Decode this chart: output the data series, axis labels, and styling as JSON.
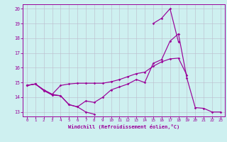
{
  "xlabel": "Windchill (Refroidissement éolien,°C)",
  "bg_color": "#cef0f0",
  "line_color": "#990099",
  "grid_color": "#bbbbcc",
  "xlim": [
    -0.5,
    23.5
  ],
  "ylim": [
    12.7,
    20.3
  ],
  "xticks": [
    0,
    1,
    2,
    3,
    4,
    5,
    6,
    7,
    8,
    9,
    10,
    11,
    12,
    13,
    14,
    15,
    16,
    17,
    18,
    19,
    20,
    21,
    22,
    23
  ],
  "yticks": [
    13,
    14,
    15,
    16,
    17,
    18,
    19,
    20
  ],
  "lines": [
    {
      "x": [
        0,
        1,
        2,
        3,
        4,
        5,
        6,
        7,
        8,
        9,
        10,
        11,
        12,
        13,
        14,
        15,
        16,
        17,
        18,
        19,
        20,
        21,
        22,
        23
      ],
      "y": [
        14.8,
        14.9,
        14.5,
        14.2,
        14.1,
        13.5,
        13.35,
        13.75,
        13.65,
        14.0,
        14.5,
        14.7,
        14.9,
        15.2,
        15.0,
        16.3,
        16.55,
        17.8,
        18.3,
        15.3,
        13.3,
        13.25,
        13.0,
        13.0
      ]
    },
    {
      "x": [
        0,
        1,
        2,
        3,
        4,
        5,
        6,
        7,
        8,
        9,
        10,
        11,
        12,
        13,
        14,
        15,
        16,
        17,
        18,
        19
      ],
      "y": [
        14.8,
        14.9,
        14.5,
        14.2,
        14.8,
        14.9,
        14.95,
        14.95,
        14.95,
        14.95,
        15.05,
        15.2,
        15.4,
        15.6,
        15.7,
        16.1,
        16.4,
        16.6,
        16.65,
        15.5
      ]
    },
    {
      "x": [
        15,
        16,
        17,
        18
      ],
      "y": [
        19.0,
        19.35,
        20.0,
        17.75
      ]
    },
    {
      "x": [
        0,
        1,
        2,
        3,
        4,
        5,
        6,
        7,
        8
      ],
      "y": [
        14.8,
        14.9,
        14.45,
        14.15,
        14.1,
        13.5,
        13.35,
        13.0,
        12.85
      ]
    }
  ]
}
